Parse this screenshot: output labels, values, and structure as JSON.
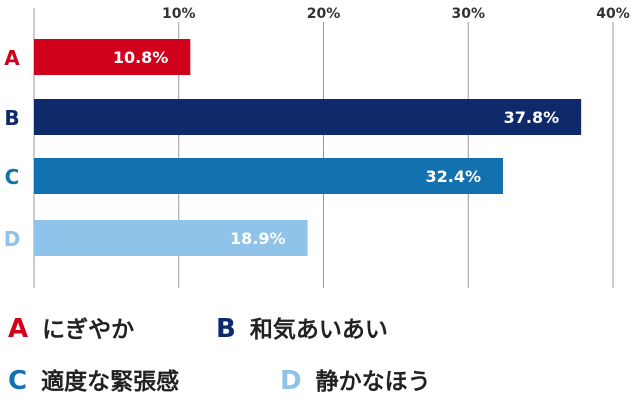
{
  "chart_data": {
    "type": "bar",
    "orientation": "horizontal",
    "categories": [
      "A",
      "B",
      "C",
      "D"
    ],
    "values": [
      10.8,
      37.8,
      32.4,
      18.9
    ],
    "value_labels": [
      "10.8%",
      "37.8%",
      "32.4%",
      "18.9%"
    ],
    "xlim": [
      0,
      40
    ],
    "ticks": [
      10,
      20,
      30,
      40
    ],
    "tick_labels": [
      "10%",
      "20%",
      "30%",
      "40%"
    ],
    "grid": true,
    "axis_position": "top",
    "colors": [
      "#d0021b",
      "#0f2a6b",
      "#1471b0",
      "#8fc3ea"
    ],
    "title": "",
    "xlabel": "",
    "ylabel": ""
  },
  "legend": {
    "placement": "bottom",
    "items": [
      {
        "letter": "A",
        "label": "にぎやか",
        "color": "#d0021b"
      },
      {
        "letter": "B",
        "label": "和気あいあい",
        "color": "#0f2a6b"
      },
      {
        "letter": "C",
        "label": "適度な緊張感",
        "color": "#1471b0"
      },
      {
        "letter": "D",
        "label": "静かなほう",
        "color": "#8fc3ea"
      }
    ]
  }
}
